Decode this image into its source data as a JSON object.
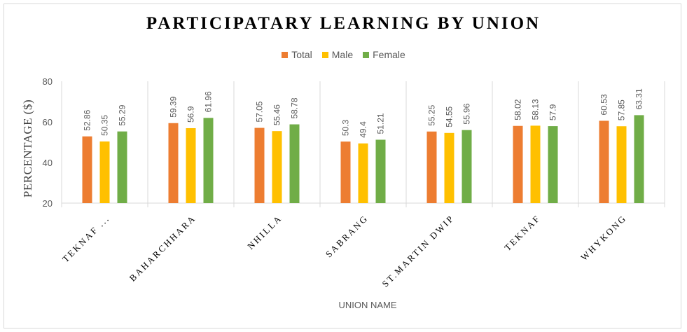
{
  "chart_data": {
    "type": "bar",
    "title": "PARTICIPATARY LEARNING BY UNION",
    "xlabel": "UNION NAME",
    "ylabel": "PERCENTAGE ($)",
    "ylim": [
      20,
      80
    ],
    "yticks": [
      20,
      40,
      60,
      80
    ],
    "grid": "major vertical category separators",
    "legend_position": "top",
    "categories": [
      "TEKNAF ...",
      "BAHARCHHARA",
      "NHILLA",
      "SABRANG",
      "ST.MARTIN DWIP",
      "TEKNAF",
      "WHYKONG"
    ],
    "series": [
      {
        "name": "Total",
        "color": "#ED7D31",
        "values": [
          52.86,
          59.39,
          57.05,
          50.3,
          55.25,
          58.02,
          60.53
        ]
      },
      {
        "name": "Male",
        "color": "#FFC000",
        "values": [
          50.35,
          56.9,
          55.46,
          49.4,
          54.55,
          58.13,
          57.85
        ]
      },
      {
        "name": "Female",
        "color": "#70AD47",
        "values": [
          55.29,
          61.96,
          58.78,
          51.21,
          55.96,
          57.9,
          63.31
        ]
      }
    ]
  }
}
